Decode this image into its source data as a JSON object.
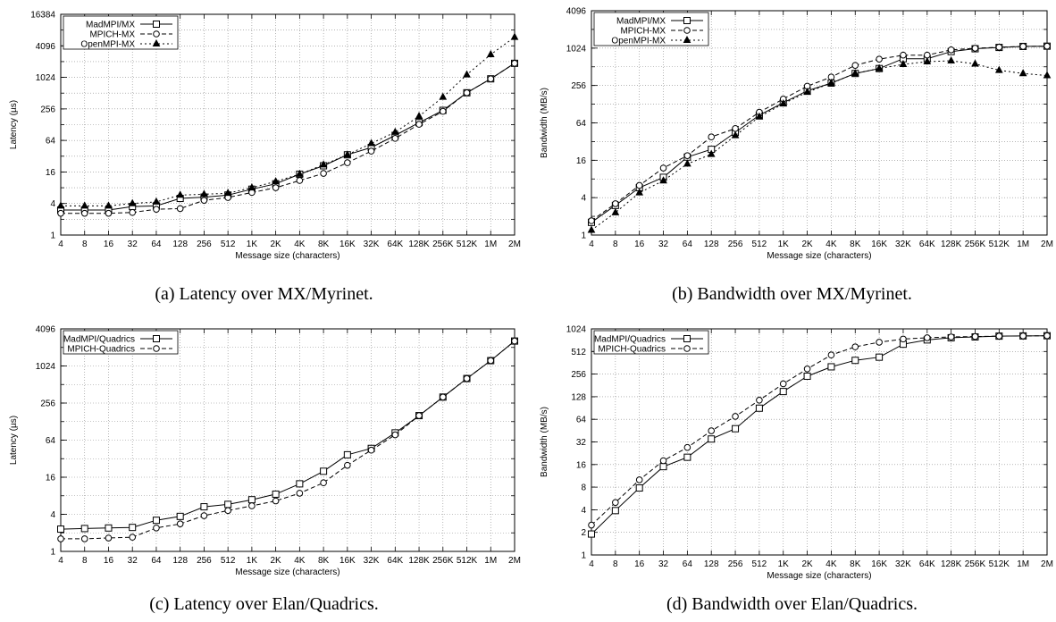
{
  "figure": {
    "captions": [
      "(a) Latency over MX/Myrinet.",
      "(b) Bandwidth over MX/Myrinet.",
      "(c) Latency over Elan/Quadrics.",
      "(d) Bandwidth over Elan/Quadrics."
    ]
  },
  "chart_data": [
    {
      "type": "line",
      "title": "",
      "xlabel": "Message size (characters)",
      "ylabel": "Latency (µs)",
      "yscale": "log2",
      "ylim": [
        1,
        16384
      ],
      "yticks": [
        "1",
        "4",
        "16",
        "64",
        "256",
        "1024",
        "4096",
        "16384"
      ],
      "grid": true,
      "legend_position": "top-left",
      "x": [
        "4",
        "8",
        "16",
        "32",
        "64",
        "128",
        "256",
        "512",
        "1K",
        "2K",
        "4K",
        "8K",
        "16K",
        "32K",
        "64K",
        "128K",
        "256K",
        "512K",
        "1M",
        "2M"
      ],
      "series": [
        {
          "name": "MadMPI/MX",
          "marker": "square",
          "dash": "solid",
          "values": [
            3.0,
            3.0,
            3.0,
            3.5,
            3.6,
            5.0,
            5.3,
            5.8,
            7.5,
            9.5,
            14.5,
            21,
            34,
            47,
            80,
            140,
            240,
            520,
            960,
            1900
          ]
        },
        {
          "name": "MPICH-MX",
          "marker": "circle",
          "dash": "dashed",
          "values": [
            2.6,
            2.6,
            2.6,
            2.7,
            3.1,
            3.2,
            4.6,
            5.2,
            6.5,
            8.0,
            11.0,
            15.0,
            24,
            40,
            70,
            130,
            230,
            520,
            960,
            1900
          ]
        },
        {
          "name": "OpenMPI-MX",
          "marker": "triangle",
          "dash": "dotted",
          "values": [
            3.6,
            3.6,
            3.6,
            4.0,
            4.3,
            5.8,
            6.0,
            6.3,
            8.0,
            10.5,
            14.5,
            22,
            34,
            56,
            92,
            185,
            430,
            1150,
            2800,
            6000
          ]
        }
      ]
    },
    {
      "type": "line",
      "title": "",
      "xlabel": "Message size (characters)",
      "ylabel": "Bandwidth (MB/s)",
      "yscale": "log2",
      "ylim": [
        1,
        4096
      ],
      "yticks": [
        "1",
        "4",
        "16",
        "64",
        "256",
        "1024",
        "4096"
      ],
      "grid": true,
      "legend_position": "top-left",
      "x": [
        "4",
        "8",
        "16",
        "32",
        "64",
        "128",
        "256",
        "512",
        "1K",
        "2K",
        "4K",
        "8K",
        "16K",
        "32K",
        "64K",
        "128K",
        "256K",
        "512K",
        "1M",
        "2M"
      ],
      "series": [
        {
          "name": "MadMPI/MX",
          "marker": "square",
          "dash": "solid",
          "values": [
            1.6,
            3.0,
            5.8,
            8.5,
            18,
            24,
            45,
            85,
            135,
            210,
            280,
            400,
            480,
            690,
            690,
            900,
            1000,
            1050,
            1090,
            1100
          ]
        },
        {
          "name": "MPICH-MX",
          "marker": "circle",
          "dash": "dashed",
          "values": [
            1.7,
            3.2,
            6.3,
            12,
            19,
            38,
            52,
            95,
            155,
            250,
            350,
            540,
            680,
            790,
            790,
            960,
            1020,
            1060,
            1090,
            1100
          ]
        },
        {
          "name": "OpenMPI-MX",
          "marker": "triangle",
          "dash": "dotted",
          "values": [
            1.2,
            2.3,
            4.8,
            7.5,
            14,
            20,
            40,
            80,
            130,
            200,
            280,
            400,
            480,
            560,
            620,
            640,
            570,
            450,
            400,
            370
          ]
        }
      ]
    },
    {
      "type": "line",
      "title": "",
      "xlabel": "Message size (characters)",
      "ylabel": "Latency (µs)",
      "yscale": "log2",
      "ylim": [
        1,
        4096
      ],
      "yticks": [
        "1",
        "4",
        "16",
        "64",
        "256",
        "1024",
        "4096"
      ],
      "grid": true,
      "legend_position": "top-left",
      "x": [
        "4",
        "8",
        "16",
        "32",
        "64",
        "128",
        "256",
        "512",
        "1K",
        "2K",
        "4K",
        "8K",
        "16K",
        "32K",
        "64K",
        "128K",
        "256K",
        "512K",
        "1M",
        "2M"
      ],
      "series": [
        {
          "name": "MadMPI/Quadrics",
          "marker": "square",
          "dash": "solid",
          "values": [
            2.3,
            2.35,
            2.4,
            2.45,
            3.2,
            3.7,
            5.3,
            5.8,
            6.9,
            8.5,
            12.5,
            20,
            37,
            47,
            84,
            160,
            320,
            640,
            1250,
            2600
          ]
        },
        {
          "name": "MPICH-Quadrics",
          "marker": "circle",
          "dash": "dashed",
          "values": [
            1.6,
            1.6,
            1.65,
            1.7,
            2.4,
            2.8,
            3.8,
            4.6,
            5.5,
            6.6,
            8.8,
            13,
            25,
            44,
            78,
            160,
            320,
            640,
            1250,
            2600
          ]
        }
      ]
    },
    {
      "type": "line",
      "title": "",
      "xlabel": "Message size (characters)",
      "ylabel": "Bandwidth (MB/s)",
      "yscale": "log2",
      "ylim": [
        1,
        1024
      ],
      "yticks": [
        "1",
        "2",
        "4",
        "8",
        "16",
        "32",
        "64",
        "128",
        "256",
        "512",
        "1024"
      ],
      "grid": true,
      "legend_position": "top-left",
      "x": [
        "4",
        "8",
        "16",
        "32",
        "64",
        "128",
        "256",
        "512",
        "1K",
        "2K",
        "4K",
        "8K",
        "16K",
        "32K",
        "64K",
        "128K",
        "256K",
        "512K",
        "1M",
        "2M"
      ],
      "series": [
        {
          "name": "MadMPI/Quadrics",
          "marker": "square",
          "dash": "solid",
          "values": [
            1.9,
            3.9,
            7.8,
            15,
            20,
            35,
            48,
            90,
            150,
            240,
            320,
            390,
            430,
            640,
            730,
            780,
            800,
            820,
            825,
            830
          ]
        },
        {
          "name": "MPICH-Quadrics",
          "marker": "circle",
          "dash": "dashed",
          "values": [
            2.5,
            5.0,
            10,
            18,
            27,
            45,
            70,
            115,
            190,
            300,
            460,
            590,
            680,
            750,
            780,
            800,
            810,
            820,
            825,
            830
          ]
        }
      ]
    }
  ]
}
